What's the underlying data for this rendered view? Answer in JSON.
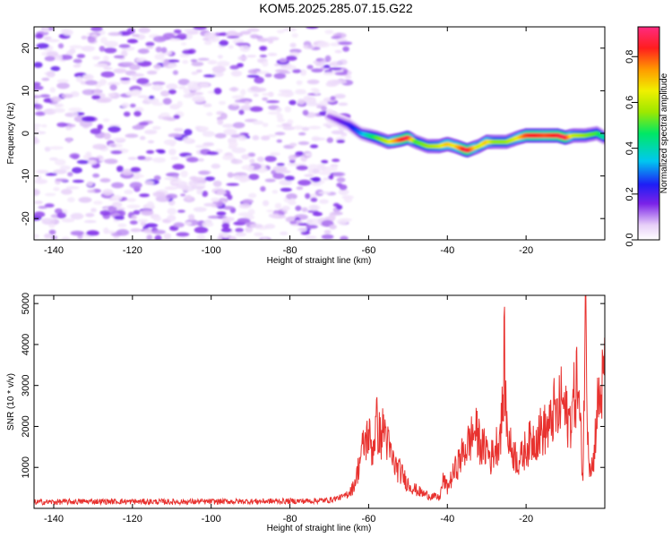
{
  "chart_data": [
    {
      "type": "heatmap",
      "title": "KOM5.2025.285.07.15.G22",
      "xlabel": "Height of straight line (km)",
      "ylabel": "Frequency (Hz)",
      "xlim": [
        -145,
        0
      ],
      "ylim": [
        -25,
        25
      ],
      "xticks": [
        -140,
        -120,
        -100,
        -80,
        -60,
        -40,
        -20
      ],
      "yticks": [
        20,
        10,
        0,
        -10,
        -20
      ],
      "colorbar": {
        "label": "Normalized spectral amplitude",
        "range": [
          0,
          0.93
        ],
        "ticks": [
          "0.0",
          "0.2",
          "0.4",
          "0.6",
          "0.8"
        ],
        "tick_values": [
          0,
          0.2,
          0.4,
          0.6,
          0.8
        ]
      },
      "noise_region": {
        "x": [
          -145,
          -65
        ],
        "y": [
          -25,
          25
        ],
        "amplitude": [
          0.03,
          0.18
        ]
      },
      "signal_ridge": {
        "x": [
          -70,
          -65,
          -62,
          -58,
          -55,
          -52,
          -50,
          -48,
          -45,
          -42,
          -40,
          -38,
          -35,
          -32,
          -30,
          -28,
          -25,
          -22,
          -20,
          -18,
          -15,
          -12,
          -10,
          -8,
          -5,
          -2,
          0
        ],
        "frequency": [
          4,
          2,
          0,
          -1,
          -2,
          -1.5,
          -1,
          -2,
          -3,
          -3,
          -2.5,
          -3,
          -4,
          -3,
          -2,
          -2,
          -2,
          -1,
          -0.5,
          -0.5,
          -0.5,
          -0.5,
          -1,
          -0.5,
          -0.5,
          0,
          -1
        ],
        "amplitude": [
          0.12,
          0.2,
          0.3,
          0.5,
          0.6,
          0.8,
          0.9,
          0.5,
          0.55,
          0.6,
          0.7,
          0.65,
          0.9,
          0.6,
          0.7,
          0.55,
          0.55,
          0.65,
          0.8,
          0.85,
          0.8,
          0.85,
          0.9,
          0.6,
          0.55,
          0.5,
          0.4
        ]
      }
    },
    {
      "type": "line",
      "xlabel": "Height of straight line (km)",
      "ylabel": "SNR (10 * v/v)",
      "xlim": [
        -145,
        0
      ],
      "ylim": [
        0,
        5200
      ],
      "xticks": [
        -140,
        -120,
        -100,
        -80,
        -60,
        -40,
        -20
      ],
      "yticks": [
        1000,
        2000,
        3000,
        4000,
        5000
      ],
      "color": "#e8322f",
      "series": [
        {
          "name": "SNR",
          "x": [
            -145,
            -130,
            -110,
            -90,
            -75,
            -70,
            -66,
            -64,
            -63,
            -62,
            -61,
            -60,
            -59,
            -58,
            -57,
            -56,
            -55,
            -54,
            -53,
            -52,
            -50,
            -48,
            -46,
            -44,
            -42,
            -41,
            -40,
            -38,
            -36,
            -34,
            -33,
            -32,
            -31,
            -30,
            -29,
            -28,
            -27,
            -26,
            -25.5,
            -25,
            -24,
            -23,
            -22,
            -21,
            -20,
            -18,
            -16,
            -14,
            -13,
            -12,
            -11,
            -10,
            -9,
            -8,
            -7,
            -6,
            -5.5,
            -5,
            -4.5,
            -4,
            -3,
            -2,
            -1,
            0
          ],
          "y": [
            150,
            170,
            160,
            170,
            180,
            200,
            300,
            500,
            800,
            1300,
            1600,
            1800,
            1400,
            2100,
            1700,
            2000,
            1500,
            1200,
            1000,
            900,
            600,
            450,
            350,
            300,
            250,
            700,
            500,
            950,
            1350,
            1700,
            1900,
            1700,
            1450,
            1500,
            1200,
            1450,
            1650,
            2300,
            3750,
            2100,
            1500,
            1350,
            1150,
            1250,
            1500,
            1700,
            1900,
            1950,
            2400,
            2200,
            2700,
            2300,
            2100,
            2550,
            3200,
            1600,
            650,
            5200,
            2800,
            1200,
            1000,
            2400,
            2800,
            3300
          ]
        }
      ]
    }
  ]
}
